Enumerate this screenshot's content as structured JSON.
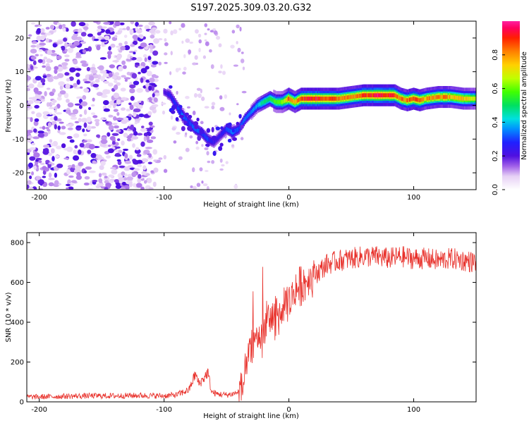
{
  "title": "S197.2025.309.03.20.G32",
  "chart_data": [
    {
      "type": "heatmap",
      "name": "spectrogram",
      "xlabel": "Height of straight line (km)",
      "ylabel": "Frequency (Hz)",
      "xlim": [
        -210,
        150
      ],
      "ylim": [
        -25,
        25
      ],
      "xticks": [
        -200,
        -100,
        0,
        100
      ],
      "yticks": [
        -20,
        -10,
        0,
        10,
        20
      ],
      "colorbar": {
        "label": "Normalized spectral amplitude",
        "range": [
          0,
          1
        ],
        "ticks": [
          0.0,
          0.2,
          0.4,
          0.6,
          0.8
        ],
        "tick_labels": [
          "0.0",
          "0.2",
          "0.4",
          "0.6",
          "0.8"
        ]
      },
      "ridge": {
        "x": [
          -100,
          -95,
          -90,
          -85,
          -80,
          -75,
          -70,
          -65,
          -60,
          -55,
          -50,
          -45,
          -40,
          -35,
          -30,
          -25,
          -20,
          -15,
          -10,
          -5,
          0,
          5,
          10,
          20,
          30,
          40,
          50,
          60,
          70,
          80,
          85,
          90,
          95,
          100,
          105,
          110,
          120,
          130,
          140,
          150
        ],
        "y": [
          4,
          3,
          0,
          -3,
          -5,
          -7,
          -8,
          -10,
          -11,
          -9,
          -7,
          -8,
          -7,
          -4,
          -2,
          0,
          1,
          2,
          1,
          1,
          2,
          1,
          2,
          2,
          2,
          2,
          2.5,
          3,
          3,
          3,
          3,
          2,
          1.5,
          2,
          1.5,
          2,
          2.5,
          2.5,
          2,
          2
        ],
        "amp": [
          0.2,
          0.25,
          0.3,
          0.35,
          0.3,
          0.35,
          0.3,
          0.3,
          0.25,
          0.25,
          0.3,
          0.35,
          0.3,
          0.35,
          0.35,
          0.4,
          0.5,
          0.55,
          0.6,
          0.65,
          0.85,
          0.8,
          0.9,
          0.95,
          0.9,
          0.85,
          0.85,
          0.9,
          0.95,
          0.95,
          0.9,
          0.85,
          0.85,
          0.9,
          0.85,
          0.8,
          0.85,
          0.8,
          0.75,
          0.7
        ]
      }
    },
    {
      "type": "line",
      "name": "snr",
      "xlabel": "Height of straight line (km)",
      "ylabel": "SNR (10 * v/v)",
      "xlim": [
        -210,
        150
      ],
      "ylim": [
        0,
        850
      ],
      "xticks": [
        -200,
        -100,
        0,
        100
      ],
      "yticks": [
        0,
        200,
        400,
        600,
        800
      ],
      "series": [
        {
          "name": "SNR",
          "color": "#e8302a",
          "x": [
            -210,
            -200,
            -180,
            -160,
            -140,
            -120,
            -100,
            -90,
            -80,
            -75,
            -72,
            -68,
            -65,
            -62,
            -58,
            -50,
            -45,
            -40,
            -37,
            -34,
            -31,
            -28,
            -25,
            -22,
            -20,
            -15,
            -10,
            -5,
            0,
            5,
            10,
            15,
            20,
            25,
            30,
            40,
            50,
            60,
            70,
            80,
            90,
            100,
            110,
            120,
            130,
            140,
            150
          ],
          "y": [
            25,
            25,
            28,
            30,
            30,
            32,
            30,
            35,
            60,
            140,
            90,
            120,
            150,
            50,
            40,
            35,
            40,
            50,
            80,
            150,
            280,
            300,
            350,
            320,
            380,
            420,
            430,
            450,
            500,
            560,
            590,
            610,
            640,
            660,
            690,
            710,
            720,
            730,
            730,
            720,
            730,
            720,
            720,
            710,
            720,
            710,
            700
          ]
        }
      ]
    }
  ]
}
